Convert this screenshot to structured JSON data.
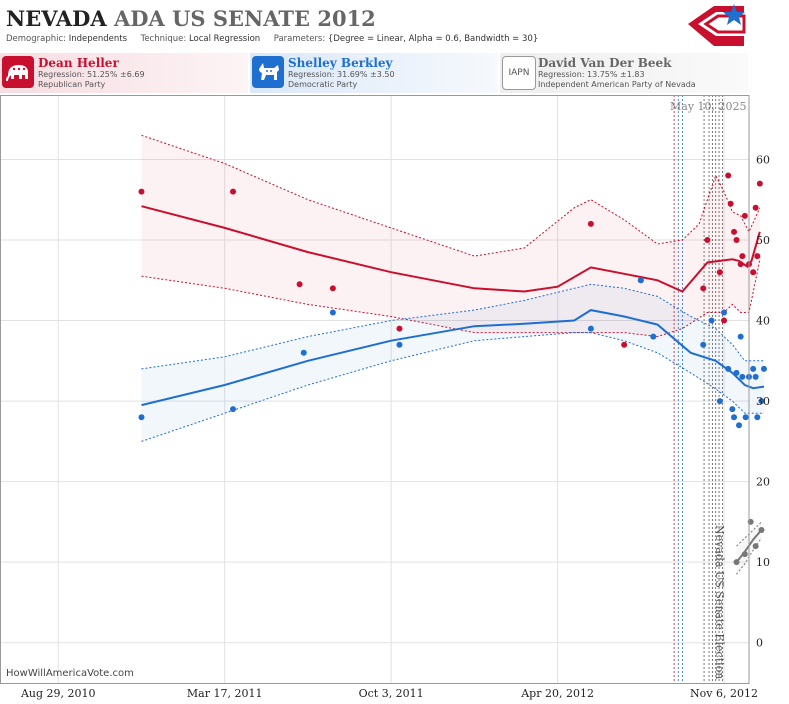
{
  "header": {
    "title_main": "NEVADA",
    "title_rest": "ADA US SENATE 2012",
    "demographic_label": "Demographic:",
    "demographic_value": "Independents",
    "technique_label": "Technique:",
    "technique_value": "Local Regression",
    "parameters_label": "Parameters:",
    "parameters_value": "{Degree = Linear, Alpha = 0.6, Bandwidth = 30}"
  },
  "candidates": [
    {
      "name": "Dean Heller",
      "regression": "Regression: 51.25% ±6.69",
      "party": "Republican Party",
      "icon": "elephant-icon",
      "color": "#c8102e"
    },
    {
      "name": "Shelley Berkley",
      "regression": "Regression: 31.69% ±3.50",
      "party": "Democratic Party",
      "icon": "donkey-icon",
      "color": "#1f6fd0"
    },
    {
      "name": "David Van Der Beek",
      "regression": "Regression: 13.75% ±1.83",
      "party": "Independent American Party  of Nevada",
      "icon": "IAPN",
      "color": "#888888"
    }
  ],
  "credit": "HowWillAmericaVote.com",
  "datestamp": "May 10, 2025",
  "chart_data": {
    "type": "scatter",
    "x_tick_labels": [
      "Aug 29, 2010",
      "Mar 17, 2011",
      "Oct 3, 2011",
      "Apr 20, 2012",
      "Nov 6, 2012"
    ],
    "x_tick_days": [
      0,
      200,
      400,
      600,
      800
    ],
    "y_ticks": [
      0,
      10,
      20,
      30,
      40,
      50,
      60
    ],
    "ylim": [
      -5,
      68
    ],
    "xlim": [
      -70,
      830
    ],
    "grid": true,
    "annotation": "Nevada US Senate Election",
    "poll_lines_days": [
      740,
      745,
      750,
      776,
      782,
      786,
      790,
      794,
      798
    ],
    "series": [
      {
        "name": "Dean Heller",
        "color": "#c8102e",
        "points": [
          [
            100,
            56
          ],
          [
            210,
            56
          ],
          [
            290,
            44.5
          ],
          [
            330,
            44
          ],
          [
            410,
            39
          ],
          [
            640,
            52
          ],
          [
            680,
            37
          ],
          [
            700,
            45
          ],
          [
            775,
            44
          ],
          [
            780,
            50
          ],
          [
            795,
            46
          ],
          [
            800,
            40
          ],
          [
            805,
            58
          ],
          [
            808,
            54.5
          ],
          [
            812,
            51
          ],
          [
            815,
            50
          ],
          [
            820,
            47
          ],
          [
            822,
            48
          ],
          [
            825,
            53
          ],
          [
            830,
            47
          ],
          [
            835,
            46
          ],
          [
            838,
            54
          ],
          [
            840,
            48
          ],
          [
            843,
            57
          ]
        ],
        "fit": [
          [
            100,
            54.2
          ],
          [
            200,
            51.5
          ],
          [
            300,
            48.5
          ],
          [
            400,
            46
          ],
          [
            500,
            44
          ],
          [
            560,
            43.6
          ],
          [
            600,
            44.2
          ],
          [
            640,
            46.6
          ],
          [
            680,
            45.8
          ],
          [
            720,
            45
          ],
          [
            750,
            43.6
          ],
          [
            780,
            47.2
          ],
          [
            810,
            47.6
          ],
          [
            818,
            47.4
          ],
          [
            828,
            46.7
          ],
          [
            833,
            47.4
          ],
          [
            843,
            51
          ]
        ],
        "upper": [
          [
            100,
            63
          ],
          [
            200,
            59.5
          ],
          [
            300,
            55
          ],
          [
            400,
            51.5
          ],
          [
            500,
            48
          ],
          [
            560,
            49
          ],
          [
            620,
            54
          ],
          [
            640,
            55
          ],
          [
            680,
            52.5
          ],
          [
            720,
            49.5
          ],
          [
            750,
            50
          ],
          [
            770,
            52
          ],
          [
            790,
            58
          ],
          [
            800,
            56
          ],
          [
            810,
            53.5
          ],
          [
            820,
            53
          ],
          [
            830,
            51
          ],
          [
            843,
            54
          ]
        ],
        "lower": [
          [
            100,
            45.5
          ],
          [
            200,
            44
          ],
          [
            300,
            42
          ],
          [
            400,
            40.5
          ],
          [
            500,
            38.5
          ],
          [
            560,
            38.5
          ],
          [
            620,
            38.5
          ],
          [
            640,
            38.5
          ],
          [
            680,
            38.5
          ],
          [
            720,
            38
          ],
          [
            750,
            39
          ],
          [
            780,
            41
          ],
          [
            800,
            41
          ],
          [
            810,
            42
          ],
          [
            820,
            41
          ],
          [
            830,
            41
          ],
          [
            843,
            47.5
          ]
        ]
      },
      {
        "name": "Shelley Berkley",
        "color": "#1f6fd0",
        "points": [
          [
            100,
            28
          ],
          [
            210,
            29
          ],
          [
            295,
            36
          ],
          [
            330,
            41
          ],
          [
            410,
            37
          ],
          [
            640,
            39
          ],
          [
            700,
            45
          ],
          [
            715,
            38
          ],
          [
            775,
            37
          ],
          [
            785,
            40
          ],
          [
            795,
            30
          ],
          [
            800,
            41
          ],
          [
            805,
            34
          ],
          [
            810,
            29
          ],
          [
            812,
            28
          ],
          [
            815,
            33.5
          ],
          [
            818,
            27
          ],
          [
            820,
            38
          ],
          [
            822,
            33
          ],
          [
            826,
            28
          ],
          [
            830,
            33
          ],
          [
            835,
            34
          ],
          [
            838,
            33
          ],
          [
            840,
            28
          ],
          [
            845,
            30
          ],
          [
            848,
            34
          ]
        ],
        "fit": [
          [
            100,
            29.5
          ],
          [
            200,
            32
          ],
          [
            300,
            35
          ],
          [
            400,
            37.5
          ],
          [
            500,
            39.3
          ],
          [
            560,
            39.6
          ],
          [
            620,
            40
          ],
          [
            640,
            41.3
          ],
          [
            680,
            40.5
          ],
          [
            720,
            39.5
          ],
          [
            760,
            36
          ],
          [
            790,
            35
          ],
          [
            810,
            33.5
          ],
          [
            825,
            32
          ],
          [
            835,
            31.6
          ],
          [
            848,
            31.8
          ]
        ],
        "upper": [
          [
            100,
            34
          ],
          [
            200,
            35.5
          ],
          [
            300,
            38
          ],
          [
            400,
            40
          ],
          [
            500,
            41.3
          ],
          [
            560,
            42.5
          ],
          [
            620,
            44
          ],
          [
            640,
            44.5
          ],
          [
            680,
            44
          ],
          [
            720,
            43
          ],
          [
            760,
            40.5
          ],
          [
            790,
            39
          ],
          [
            810,
            37
          ],
          [
            825,
            35
          ],
          [
            848,
            35
          ]
        ],
        "lower": [
          [
            100,
            25
          ],
          [
            200,
            28.5
          ],
          [
            300,
            32
          ],
          [
            400,
            35
          ],
          [
            500,
            37.5
          ],
          [
            560,
            38
          ],
          [
            620,
            38.5
          ],
          [
            640,
            38.5
          ],
          [
            680,
            37.5
          ],
          [
            720,
            36
          ],
          [
            760,
            33.5
          ],
          [
            790,
            31.5
          ],
          [
            810,
            30
          ],
          [
            825,
            28.5
          ],
          [
            848,
            28.5
          ]
        ]
      },
      {
        "name": "David Van Der Beek",
        "color": "#777777",
        "points": [
          [
            815,
            10
          ],
          [
            825,
            11
          ],
          [
            832,
            15
          ],
          [
            838,
            12
          ],
          [
            845,
            14
          ]
        ],
        "fit": [
          [
            815,
            10
          ],
          [
            825,
            11.3
          ],
          [
            835,
            12.8
          ],
          [
            845,
            14
          ]
        ],
        "upper": [
          [
            815,
            12
          ],
          [
            825,
            13
          ],
          [
            835,
            14
          ],
          [
            845,
            15
          ]
        ],
        "lower": [
          [
            815,
            8.5
          ],
          [
            825,
            9.8
          ],
          [
            835,
            11.5
          ],
          [
            845,
            13
          ]
        ]
      }
    ]
  }
}
